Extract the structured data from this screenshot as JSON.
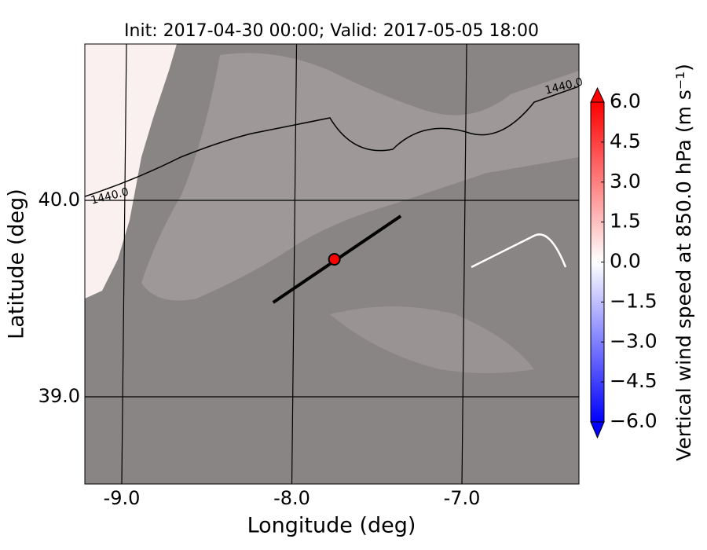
{
  "chart_data": {
    "type": "map",
    "title": "Init: 2017-04-30 00:00; Valid: 2017-05-05 18:00",
    "xlabel": "Longitude (deg)",
    "ylabel": "Latitude (deg)",
    "xlim": [
      -9.217,
      -6.312
    ],
    "ylim": [
      38.556,
      40.796
    ],
    "xticks": [
      {
        "value": -9,
        "label": "-9.0"
      },
      {
        "value": -8,
        "label": "-8.0"
      },
      {
        "value": -7,
        "label": "-7.0"
      }
    ],
    "yticks": [
      {
        "value": 39,
        "label": "39.0"
      },
      {
        "value": 40,
        "label": "40.0"
      }
    ],
    "grid": true,
    "contour_labels": [
      {
        "text": "1440.0",
        "x": -9.07,
        "y": 40.02
      },
      {
        "text": "1440.0",
        "x": -6.4,
        "y": 40.58
      }
    ],
    "cross_section": {
      "x": [
        -8.11,
        -7.36
      ],
      "y": [
        39.48,
        39.92
      ],
      "color": "#000000"
    },
    "point": {
      "x": -7.75,
      "y": 39.7,
      "color": "#ff0000"
    },
    "colorbar": {
      "label": "Vertical wind speed at 850.0 hPa (m s⁻¹)",
      "lim": [
        -6,
        6
      ],
      "ticks": [
        {
          "value": 6,
          "label": "6.0"
        },
        {
          "value": 4.5,
          "label": "4.5"
        },
        {
          "value": 3,
          "label": "3.0"
        },
        {
          "value": 1.5,
          "label": "1.5"
        },
        {
          "value": 0,
          "label": "0.0"
        },
        {
          "value": -1.5,
          "label": "−1.5"
        },
        {
          "value": -3,
          "label": "−3.0"
        },
        {
          "value": -4.5,
          "label": "−4.5"
        },
        {
          "value": -6,
          "label": "−6.0"
        }
      ]
    }
  }
}
